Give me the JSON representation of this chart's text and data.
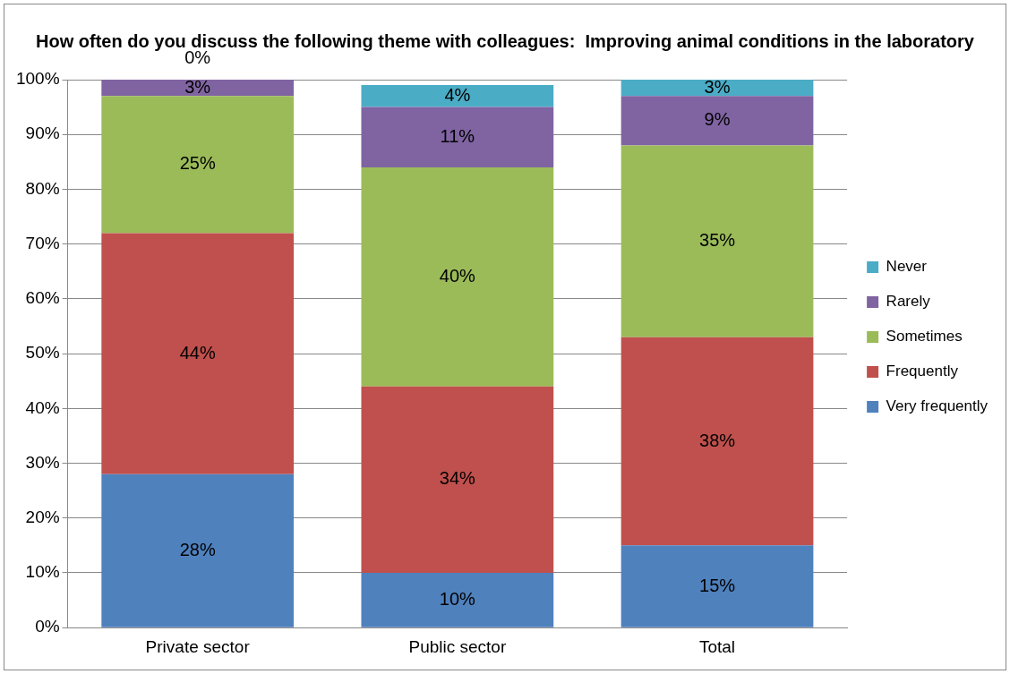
{
  "chart_data": {
    "type": "bar",
    "stacked": true,
    "title": "How often do you discuss the following theme with colleagues:  Improving animal conditions in the laboratory",
    "categories": [
      "Private sector",
      "Public sector",
      "Total"
    ],
    "series": [
      {
        "name": "Very frequently",
        "color": "#4f81bd",
        "values": [
          28,
          10,
          15
        ],
        "value_labels": [
          "28%",
          "10%",
          "15%"
        ]
      },
      {
        "name": "Frequently",
        "color": "#c0504d",
        "values": [
          44,
          34,
          38
        ],
        "value_labels": [
          "44%",
          "34%",
          "38%"
        ]
      },
      {
        "name": "Sometimes",
        "color": "#9bbb59",
        "values": [
          25,
          40,
          35
        ],
        "value_labels": [
          "25%",
          "40%",
          "35%"
        ]
      },
      {
        "name": "Rarely",
        "color": "#8064a2",
        "values": [
          3,
          11,
          9
        ],
        "value_labels": [
          "3%",
          "11%",
          "9%"
        ]
      },
      {
        "name": "Never",
        "color": "#4bacc6",
        "values": [
          0,
          4,
          3
        ],
        "value_labels": [
          "0%",
          "4%",
          "3%"
        ]
      }
    ],
    "ylim": [
      0,
      100
    ],
    "yticks": [
      {
        "value": 0,
        "label": "0%"
      },
      {
        "value": 10,
        "label": "10%"
      },
      {
        "value": 20,
        "label": "20%"
      },
      {
        "value": 30,
        "label": "30%"
      },
      {
        "value": 40,
        "label": "40%"
      },
      {
        "value": 50,
        "label": "50%"
      },
      {
        "value": 60,
        "label": "60%"
      },
      {
        "value": 70,
        "label": "70%"
      },
      {
        "value": 80,
        "label": "80%"
      },
      {
        "value": 90,
        "label": "90%"
      },
      {
        "value": 100,
        "label": "100%"
      }
    ],
    "grid": "y",
    "legend": "right"
  }
}
